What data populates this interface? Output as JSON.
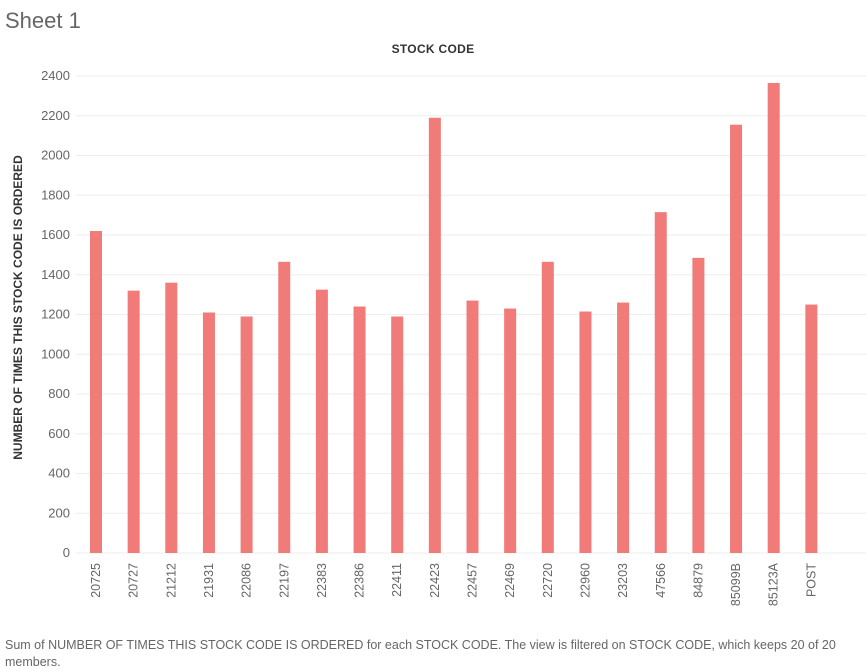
{
  "sheet": {
    "title": "Sheet 1"
  },
  "caption": "Sum of NUMBER OF TIMES THIS STOCK CODE IS ORDERED for each STOCK CODE. The view is filtered on STOCK CODE, which keeps 20 of 20 members.",
  "colors": {
    "bar": "#F07B78",
    "gridline": "#eeeeee",
    "axis_text": "#666666"
  },
  "chart_data": {
    "type": "bar",
    "title": "STOCK CODE",
    "xlabel": "",
    "ylabel": "NUMBER OF TIMES THIS STOCK CODE IS ORDERED",
    "ylim": [
      0,
      2400
    ],
    "yticks": [
      0,
      200,
      400,
      600,
      800,
      1000,
      1200,
      1400,
      1600,
      1800,
      2000,
      2200,
      2400
    ],
    "grid": true,
    "categories": [
      "20725",
      "20727",
      "21212",
      "21931",
      "22086",
      "22197",
      "22383",
      "22386",
      "22411",
      "22423",
      "22457",
      "22469",
      "22720",
      "22960",
      "23203",
      "47566",
      "84879",
      "85099B",
      "85123A",
      "POST"
    ],
    "values": [
      1620,
      1320,
      1360,
      1210,
      1190,
      1465,
      1325,
      1240,
      1190,
      2190,
      1270,
      1230,
      1465,
      1215,
      1260,
      1715,
      1485,
      2155,
      2365,
      1250
    ]
  }
}
